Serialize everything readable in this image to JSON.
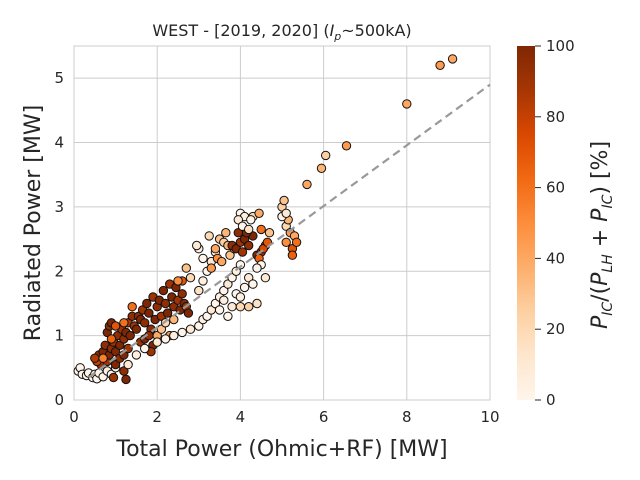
{
  "chart_data": {
    "type": "scatter",
    "title": "WEST - [2019, 2020] (",
    "title_math": {
      "var": "I",
      "sub": "p",
      "rest": "~500kA)"
    },
    "xlabel": "Total Power (Ohmic+RF) [MW]",
    "ylabel": "Radiated Power [MW]",
    "xlim": [
      0,
      10
    ],
    "ylim": [
      0,
      5.5
    ],
    "xticks": [
      "0",
      "2",
      "4",
      "6",
      "8",
      "10"
    ],
    "yticks": [
      "0",
      "1",
      "2",
      "3",
      "4",
      "5"
    ],
    "grid": true,
    "trend_line": {
      "style": "dashed",
      "color": "#999999",
      "x": [
        0.35,
        10
      ],
      "y": [
        0.35,
        4.9
      ]
    },
    "colorbar": {
      "label": "P_IC/(P_LH+P_IC) [%]",
      "min": 0,
      "max": 100,
      "ticks": [
        "0",
        "20",
        "40",
        "60",
        "80",
        "100"
      ],
      "colormap": "Oranges"
    },
    "series": [
      {
        "points": [
          [
            0.1,
            0.45,
            0
          ],
          [
            0.15,
            0.5,
            0
          ],
          [
            0.2,
            0.4,
            0
          ],
          [
            0.3,
            0.38,
            5
          ],
          [
            0.35,
            0.42,
            0
          ],
          [
            0.45,
            0.35,
            0
          ],
          [
            0.5,
            0.4,
            10
          ],
          [
            0.55,
            0.33,
            0
          ],
          [
            0.6,
            0.42,
            0
          ],
          [
            0.7,
            0.36,
            0
          ],
          [
            0.8,
            0.45,
            5
          ],
          [
            0.9,
            0.4,
            0
          ],
          [
            1.0,
            0.5,
            0
          ],
          [
            0.65,
            0.55,
            90
          ],
          [
            0.6,
            0.7,
            95
          ],
          [
            0.55,
            0.6,
            80
          ],
          [
            0.5,
            0.65,
            85
          ],
          [
            0.7,
            0.75,
            100
          ],
          [
            0.75,
            0.85,
            95
          ],
          [
            0.8,
            0.6,
            90
          ],
          [
            0.85,
            0.7,
            100
          ],
          [
            0.9,
            0.8,
            95
          ],
          [
            0.95,
            0.9,
            90
          ],
          [
            1.0,
            0.75,
            100
          ],
          [
            1.05,
            1.0,
            95
          ],
          [
            1.1,
            0.85,
            100
          ],
          [
            1.15,
            1.1,
            90
          ],
          [
            1.2,
            0.95,
            95
          ],
          [
            1.25,
            1.05,
            100
          ],
          [
            1.3,
            1.2,
            85
          ],
          [
            0.8,
            1.05,
            100
          ],
          [
            0.85,
            1.15,
            95
          ],
          [
            0.9,
            1.2,
            100
          ],
          [
            1.35,
            1.0,
            100
          ],
          [
            1.4,
            1.3,
            95
          ],
          [
            1.45,
            1.15,
            90
          ],
          [
            1.5,
            1.1,
            100
          ],
          [
            1.55,
            1.3,
            95
          ],
          [
            1.6,
            1.25,
            100
          ],
          [
            1.65,
            1.4,
            90
          ],
          [
            1.7,
            1.2,
            95
          ],
          [
            1.75,
            1.5,
            100
          ],
          [
            1.8,
            1.35,
            100
          ],
          [
            1.85,
            1.1,
            95
          ],
          [
            1.9,
            1.6,
            90
          ],
          [
            1.95,
            1.25,
            100
          ],
          [
            2.0,
            1.45,
            95
          ],
          [
            2.05,
            1.55,
            100
          ],
          [
            2.1,
            1.3,
            90
          ],
          [
            2.15,
            1.7,
            100
          ],
          [
            2.2,
            1.5,
            95
          ],
          [
            2.25,
            1.35,
            100
          ],
          [
            2.3,
            1.8,
            90
          ],
          [
            2.35,
            1.6,
            100
          ],
          [
            2.4,
            1.45,
            95
          ],
          [
            2.45,
            1.75,
            100
          ],
          [
            2.5,
            1.55,
            90
          ],
          [
            2.55,
            1.4,
            100
          ],
          [
            2.6,
            1.65,
            95
          ],
          [
            2.65,
            1.5,
            100
          ],
          [
            2.7,
            1.45,
            90
          ],
          [
            2.75,
            1.35,
            100
          ],
          [
            1.0,
            0.55,
            100
          ],
          [
            1.1,
            0.65,
            95
          ],
          [
            1.2,
            0.7,
            100
          ],
          [
            1.3,
            0.8,
            90
          ],
          [
            1.25,
            0.32,
            100
          ],
          [
            1.2,
            0.45,
            95
          ],
          [
            0.95,
            0.35,
            90
          ],
          [
            1.6,
            0.9,
            90
          ],
          [
            1.7,
            0.95,
            100
          ],
          [
            1.8,
            1.0,
            95
          ],
          [
            1.9,
            0.85,
            100
          ],
          [
            1.85,
            0.75,
            90
          ],
          [
            2.0,
            1.0,
            40
          ],
          [
            2.1,
            1.1,
            30
          ],
          [
            2.2,
            1.2,
            20
          ],
          [
            2.3,
            1.0,
            45
          ],
          [
            2.4,
            1.25,
            35
          ],
          [
            1.2,
            1.2,
            60
          ],
          [
            1.0,
            1.15,
            70
          ],
          [
            0.9,
            0.95,
            65
          ],
          [
            0.7,
            0.65,
            55
          ],
          [
            1.4,
            1.45,
            60
          ],
          [
            2.6,
            1.85,
            70
          ],
          [
            2.7,
            2.05,
            30
          ],
          [
            2.8,
            1.9,
            20
          ],
          [
            2.5,
            1.85,
            50
          ],
          [
            1.3,
            0.55,
            10
          ],
          [
            1.5,
            0.7,
            5
          ],
          [
            1.7,
            0.8,
            0
          ],
          [
            2.0,
            0.9,
            10
          ],
          [
            2.2,
            0.95,
            0
          ],
          [
            2.4,
            1.0,
            5
          ],
          [
            2.6,
            1.05,
            0
          ],
          [
            2.8,
            1.1,
            10
          ],
          [
            3.0,
            1.15,
            0
          ],
          [
            3.1,
            1.25,
            5
          ],
          [
            3.2,
            1.3,
            0
          ],
          [
            3.3,
            1.4,
            10
          ],
          [
            3.4,
            1.5,
            0
          ],
          [
            3.5,
            1.6,
            5
          ],
          [
            3.6,
            1.7,
            0
          ],
          [
            3.7,
            1.8,
            10
          ],
          [
            3.8,
            1.9,
            0
          ],
          [
            3.9,
            2.0,
            5
          ],
          [
            4.0,
            2.1,
            0
          ],
          [
            3.0,
            1.7,
            15
          ],
          [
            3.1,
            1.85,
            5
          ],
          [
            3.2,
            2.0,
            0
          ],
          [
            3.3,
            2.15,
            10
          ],
          [
            3.4,
            2.3,
            0
          ],
          [
            3.0,
            2.35,
            5
          ],
          [
            3.1,
            2.2,
            0
          ],
          [
            2.95,
            2.4,
            10
          ],
          [
            3.5,
            1.4,
            0
          ],
          [
            3.6,
            1.55,
            5
          ],
          [
            3.7,
            1.3,
            0
          ],
          [
            3.8,
            1.45,
            10
          ],
          [
            3.9,
            1.65,
            0
          ],
          [
            4.0,
            1.6,
            5
          ],
          [
            4.1,
            1.75,
            0
          ],
          [
            4.2,
            1.9,
            10
          ],
          [
            4.3,
            1.8,
            0
          ],
          [
            4.0,
            1.45,
            20
          ],
          [
            4.4,
            1.5,
            15
          ],
          [
            4.2,
            1.45,
            25
          ],
          [
            3.25,
            2.55,
            20
          ],
          [
            3.5,
            2.5,
            30
          ],
          [
            3.6,
            2.45,
            25
          ],
          [
            3.7,
            2.4,
            35
          ],
          [
            3.4,
            2.35,
            40
          ],
          [
            3.3,
            2.05,
            45
          ],
          [
            3.45,
            2.2,
            50
          ],
          [
            3.55,
            2.15,
            40
          ],
          [
            3.75,
            2.25,
            30
          ],
          [
            3.85,
            2.35,
            45
          ],
          [
            3.65,
            2.6,
            35
          ],
          [
            3.8,
            2.4,
            95
          ],
          [
            3.9,
            2.35,
            100
          ],
          [
            4.0,
            2.45,
            90
          ],
          [
            4.1,
            2.5,
            100
          ],
          [
            4.2,
            2.4,
            95
          ],
          [
            4.3,
            2.55,
            100
          ],
          [
            4.05,
            2.3,
            90
          ],
          [
            4.15,
            2.6,
            100
          ],
          [
            3.95,
            2.6,
            95
          ],
          [
            4.4,
            2.25,
            100
          ],
          [
            4.5,
            2.3,
            90
          ],
          [
            4.6,
            2.4,
            80
          ],
          [
            4.55,
            2.35,
            75
          ],
          [
            4.65,
            2.45,
            70
          ],
          [
            4.5,
            2.65,
            60
          ],
          [
            4.45,
            2.2,
            65
          ],
          [
            4.0,
            2.9,
            0
          ],
          [
            4.1,
            2.85,
            5
          ],
          [
            3.95,
            2.8,
            10
          ],
          [
            4.05,
            2.7,
            0
          ],
          [
            4.3,
            2.85,
            20
          ],
          [
            4.45,
            2.9,
            40
          ],
          [
            4.7,
            2.6,
            30
          ],
          [
            4.2,
            2.65,
            15
          ],
          [
            4.25,
            2.8,
            0
          ],
          [
            4.5,
            2.1,
            0
          ],
          [
            4.6,
            1.9,
            10
          ],
          [
            4.4,
            2.05,
            0
          ],
          [
            5.0,
            3.0,
            25
          ],
          [
            5.05,
            3.1,
            30
          ],
          [
            5.1,
            2.7,
            20
          ],
          [
            5.15,
            2.8,
            35
          ],
          [
            5.2,
            2.6,
            45
          ],
          [
            5.3,
            2.55,
            40
          ],
          [
            5.1,
            2.45,
            50
          ],
          [
            5.25,
            2.35,
            70
          ],
          [
            5.35,
            2.45,
            60
          ],
          [
            5.25,
            2.25,
            65
          ],
          [
            5.0,
            2.85,
            0
          ],
          [
            5.1,
            2.9,
            10
          ],
          [
            5.6,
            3.35,
            40
          ],
          [
            5.95,
            3.6,
            35
          ],
          [
            6.05,
            3.8,
            25
          ],
          [
            6.55,
            3.95,
            45
          ],
          [
            8.0,
            4.6,
            40
          ],
          [
            8.8,
            5.2,
            45
          ],
          [
            9.1,
            5.3,
            40
          ]
        ]
      }
    ]
  }
}
